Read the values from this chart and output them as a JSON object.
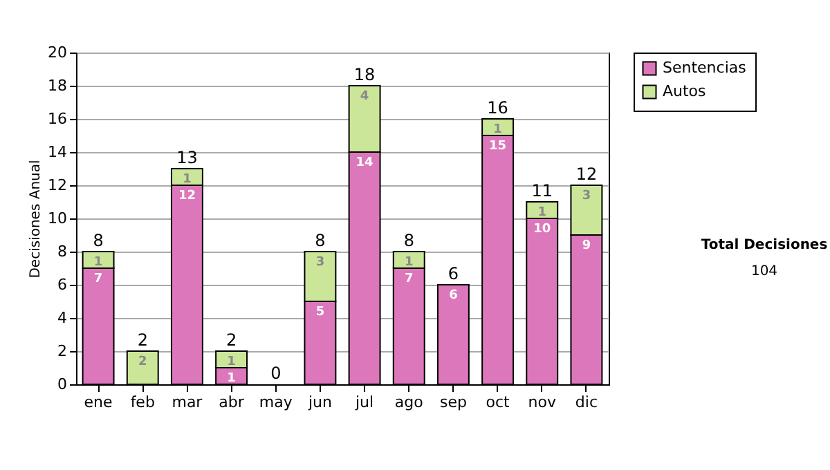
{
  "chart_data": {
    "type": "bar",
    "stacked": true,
    "ylabel": "Decisiones Anual",
    "categories": [
      "ene",
      "feb",
      "mar",
      "abr",
      "may",
      "jun",
      "jul",
      "ago",
      "sep",
      "oct",
      "nov",
      "dic"
    ],
    "series": [
      {
        "name": "Sentencias",
        "color": "#dd77bb",
        "values": [
          7,
          0,
          12,
          1,
          0,
          5,
          14,
          7,
          6,
          15,
          10,
          9
        ],
        "value_labels": [
          "7",
          null,
          "12",
          "1",
          null,
          "5",
          "14",
          "7",
          "6",
          "15",
          "10",
          "9"
        ]
      },
      {
        "name": "Autos",
        "color": "#cce699",
        "values": [
          1,
          2,
          1,
          1,
          0,
          3,
          4,
          1,
          0,
          1,
          1,
          3
        ],
        "value_labels": [
          "1",
          "2",
          "1",
          "1",
          null,
          "3",
          "4",
          "1",
          null,
          "1",
          "1",
          "3"
        ]
      }
    ],
    "totals": [
      "8",
      "2",
      "13",
      "2",
      "0",
      "8",
      "18",
      "8",
      "6",
      "16",
      "11",
      "12"
    ],
    "ylim": [
      0,
      20
    ],
    "yticks": [
      0,
      2,
      4,
      6,
      8,
      10,
      12,
      14,
      16,
      18,
      20
    ],
    "grid": "y",
    "legend": "right",
    "annotations": [
      "Total Decisiones",
      "104"
    ]
  }
}
